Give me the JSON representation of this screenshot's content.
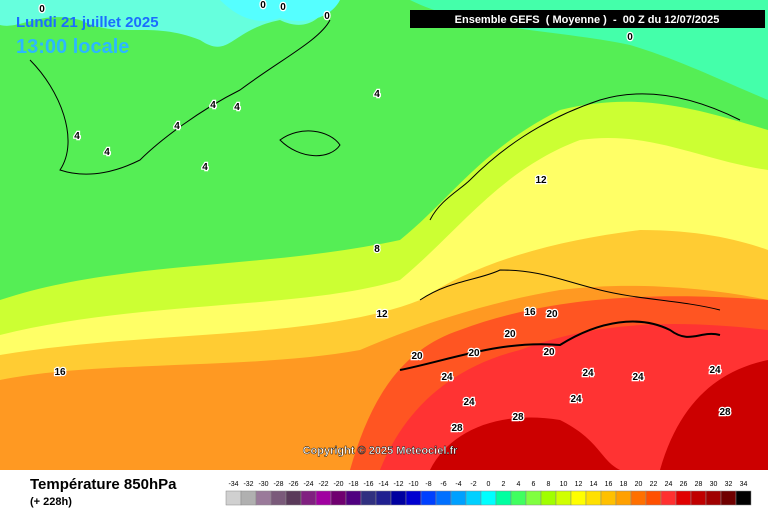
{
  "header": {
    "date": "Lundi 21 juillet 2025",
    "time": "13:00 locale",
    "run": "Ensemble GEFS  ( Moyenne )  -  00 Z du 12/07/2025"
  },
  "copyright": "Copyright © 2025 Meteociel.fr",
  "footer": {
    "title": "Température 850hPa",
    "lead": "(+ 228h)"
  },
  "contour_labels": [
    0,
    0,
    0,
    0,
    0,
    4,
    4,
    4,
    4,
    4,
    4,
    4,
    8,
    12,
    12,
    16,
    16,
    20,
    20,
    20,
    20,
    20,
    24,
    24,
    24,
    24,
    24,
    24,
    28,
    28,
    28
  ],
  "legend": {
    "values": [
      -34,
      -32,
      -30,
      -28,
      -26,
      -24,
      -22,
      -20,
      -18,
      -16,
      -14,
      -12,
      -10,
      -8,
      -6,
      -4,
      -2,
      0,
      2,
      4,
      6,
      8,
      10,
      12,
      14,
      16,
      18,
      20,
      22,
      24,
      26,
      28,
      30,
      32,
      34
    ],
    "colors": [
      "#d0d0d0",
      "#b0b0b0",
      "#9a7a9a",
      "#7a5a7a",
      "#5a3a5a",
      "#802080",
      "#a000a0",
      "#700070",
      "#500080",
      "#303080",
      "#202090",
      "#0000a0",
      "#0000d0",
      "#0040ff",
      "#0070ff",
      "#00a0ff",
      "#00d0ff",
      "#00ffff",
      "#00ffa0",
      "#40ff60",
      "#80ff40",
      "#a0ff00",
      "#d0ff00",
      "#ffff00",
      "#ffe000",
      "#ffc000",
      "#ffa000",
      "#ff7000",
      "#ff5000",
      "#ff3030",
      "#e00000",
      "#c00000",
      "#a00000",
      "#700000",
      "#000000"
    ]
  }
}
